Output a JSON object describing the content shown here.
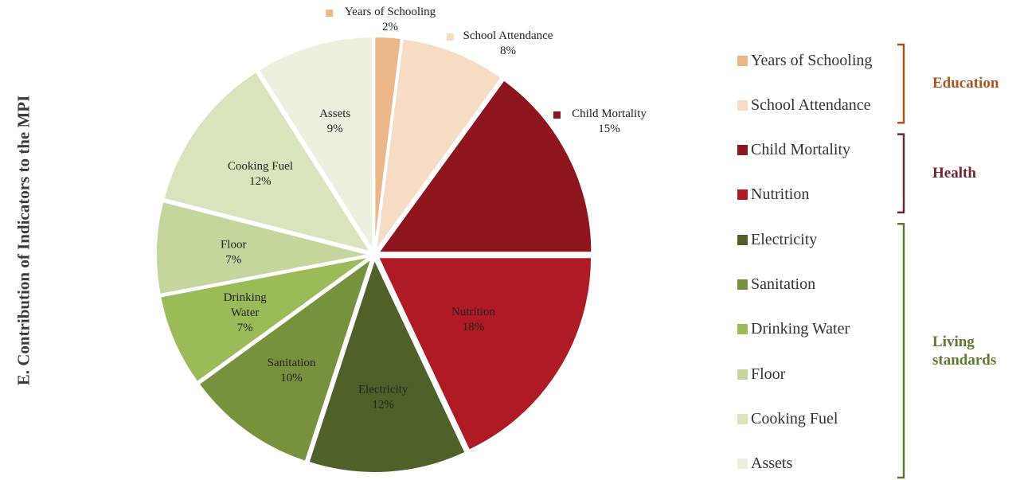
{
  "title": "E. Contribution of Indicators to the MPI",
  "chart_data": {
    "type": "pie",
    "slices": [
      {
        "label": "Years of Schooling",
        "value": 2,
        "display": "2%",
        "color": "#ecb788"
      },
      {
        "label": "School Attendance",
        "value": 8,
        "display": "8%",
        "color": "#f6dcc5"
      },
      {
        "label": "Child Mortality",
        "value": 15,
        "display": "15%",
        "color": "#8e151d"
      },
      {
        "label": "Nutrition",
        "value": 18,
        "display": "18%",
        "color": "#b01a24"
      },
      {
        "label": "Electricity",
        "value": 12,
        "display": "12%",
        "color": "#4e6129"
      },
      {
        "label": "Sanitation",
        "value": 10,
        "display": "10%",
        "color": "#76923c"
      },
      {
        "label": "Drinking Water",
        "value": 7,
        "display": "7%",
        "color": "#9bbb59"
      },
      {
        "label": "Floor",
        "value": 7,
        "display": "7%",
        "color": "#c3d69b"
      },
      {
        "label": "Cooking Fuel",
        "value": 12,
        "display": "12%",
        "color": "#d7e4bc"
      },
      {
        "label": "Assets",
        "value": 9,
        "display": "9%",
        "color": "#ebf1de"
      }
    ]
  },
  "legend": {
    "items": [
      {
        "label": "Years of Schooling",
        "color": "#ecb788"
      },
      {
        "label": "School Attendance",
        "color": "#f6dcc5"
      },
      {
        "label": "Child Mortality",
        "color": "#8e151d"
      },
      {
        "label": "Nutrition",
        "color": "#b01a24"
      },
      {
        "label": "Electricity",
        "color": "#4e6129"
      },
      {
        "label": "Sanitation",
        "color": "#76923c"
      },
      {
        "label": "Drinking Water",
        "color": "#9bbb59"
      },
      {
        "label": "Floor",
        "color": "#c3d69b"
      },
      {
        "label": "Cooking Fuel",
        "color": "#d7e4bc"
      },
      {
        "label": "Assets",
        "color": "#ebf1de"
      }
    ],
    "groups": [
      {
        "label": "Education",
        "color": "#a9541d",
        "first": 0,
        "last": 1
      },
      {
        "label": "Health",
        "color": "#6b2a2e",
        "first": 2,
        "last": 3
      },
      {
        "label": "Living standards",
        "color": "#5f7a2f",
        "first": 4,
        "last": 9
      }
    ]
  }
}
